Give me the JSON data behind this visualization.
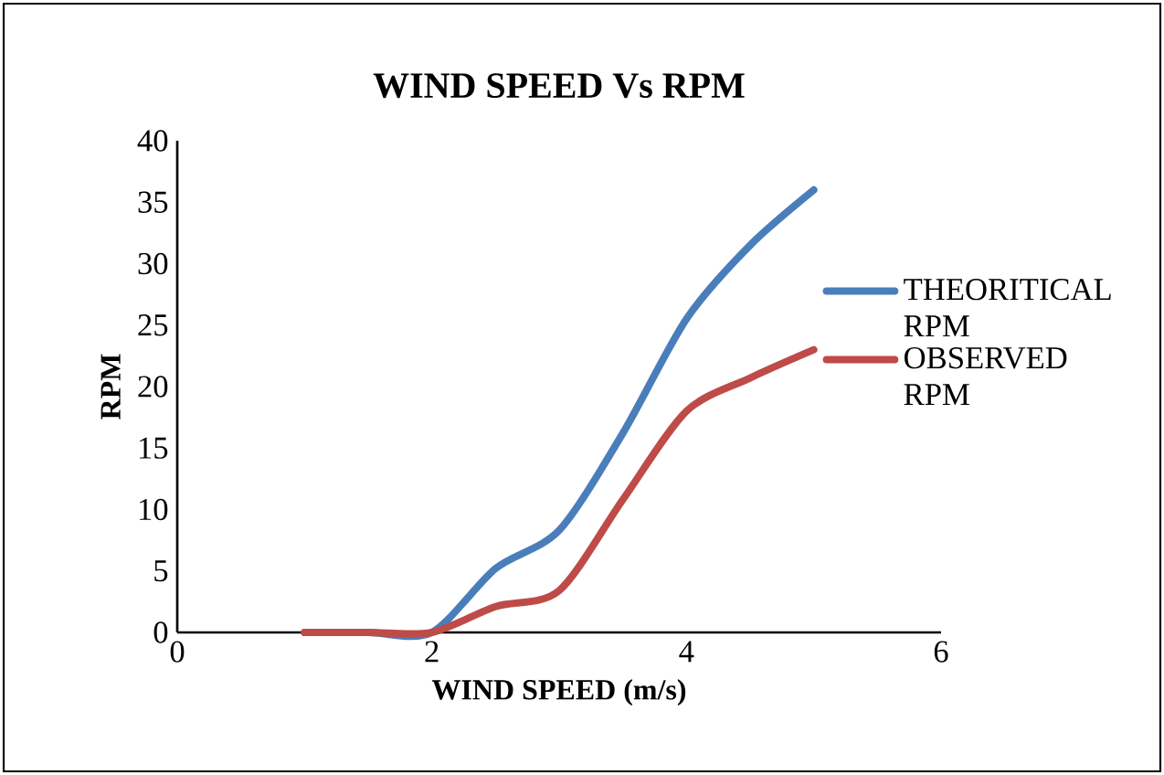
{
  "chart_data": {
    "type": "line",
    "title": "WIND SPEED Vs RPM",
    "xlabel": "WIND SPEED (m/s)",
    "ylabel": "RPM",
    "x": [
      1,
      1.5,
      2,
      2.5,
      3,
      3.5,
      4,
      4.5,
      5
    ],
    "series": [
      {
        "name": "THEORITICAL RPM",
        "color": "#4a7ebb",
        "values": [
          0,
          0,
          0,
          5.2,
          8.3,
          16.2,
          25.5,
          31.5,
          36
        ]
      },
      {
        "name": "OBSERVED RPM",
        "color": "#be4b48",
        "values": [
          0,
          0,
          0,
          2.1,
          3.4,
          10.8,
          18,
          20.7,
          23
        ]
      }
    ],
    "xlim": [
      0,
      6
    ],
    "xticks": [
      0,
      2,
      4,
      6
    ],
    "ylim": [
      0,
      40
    ],
    "yticks": [
      0,
      5,
      10,
      15,
      20,
      25,
      30,
      35,
      40
    ],
    "grid": false,
    "legend": "right",
    "marker": "none",
    "line_style": "solid"
  }
}
